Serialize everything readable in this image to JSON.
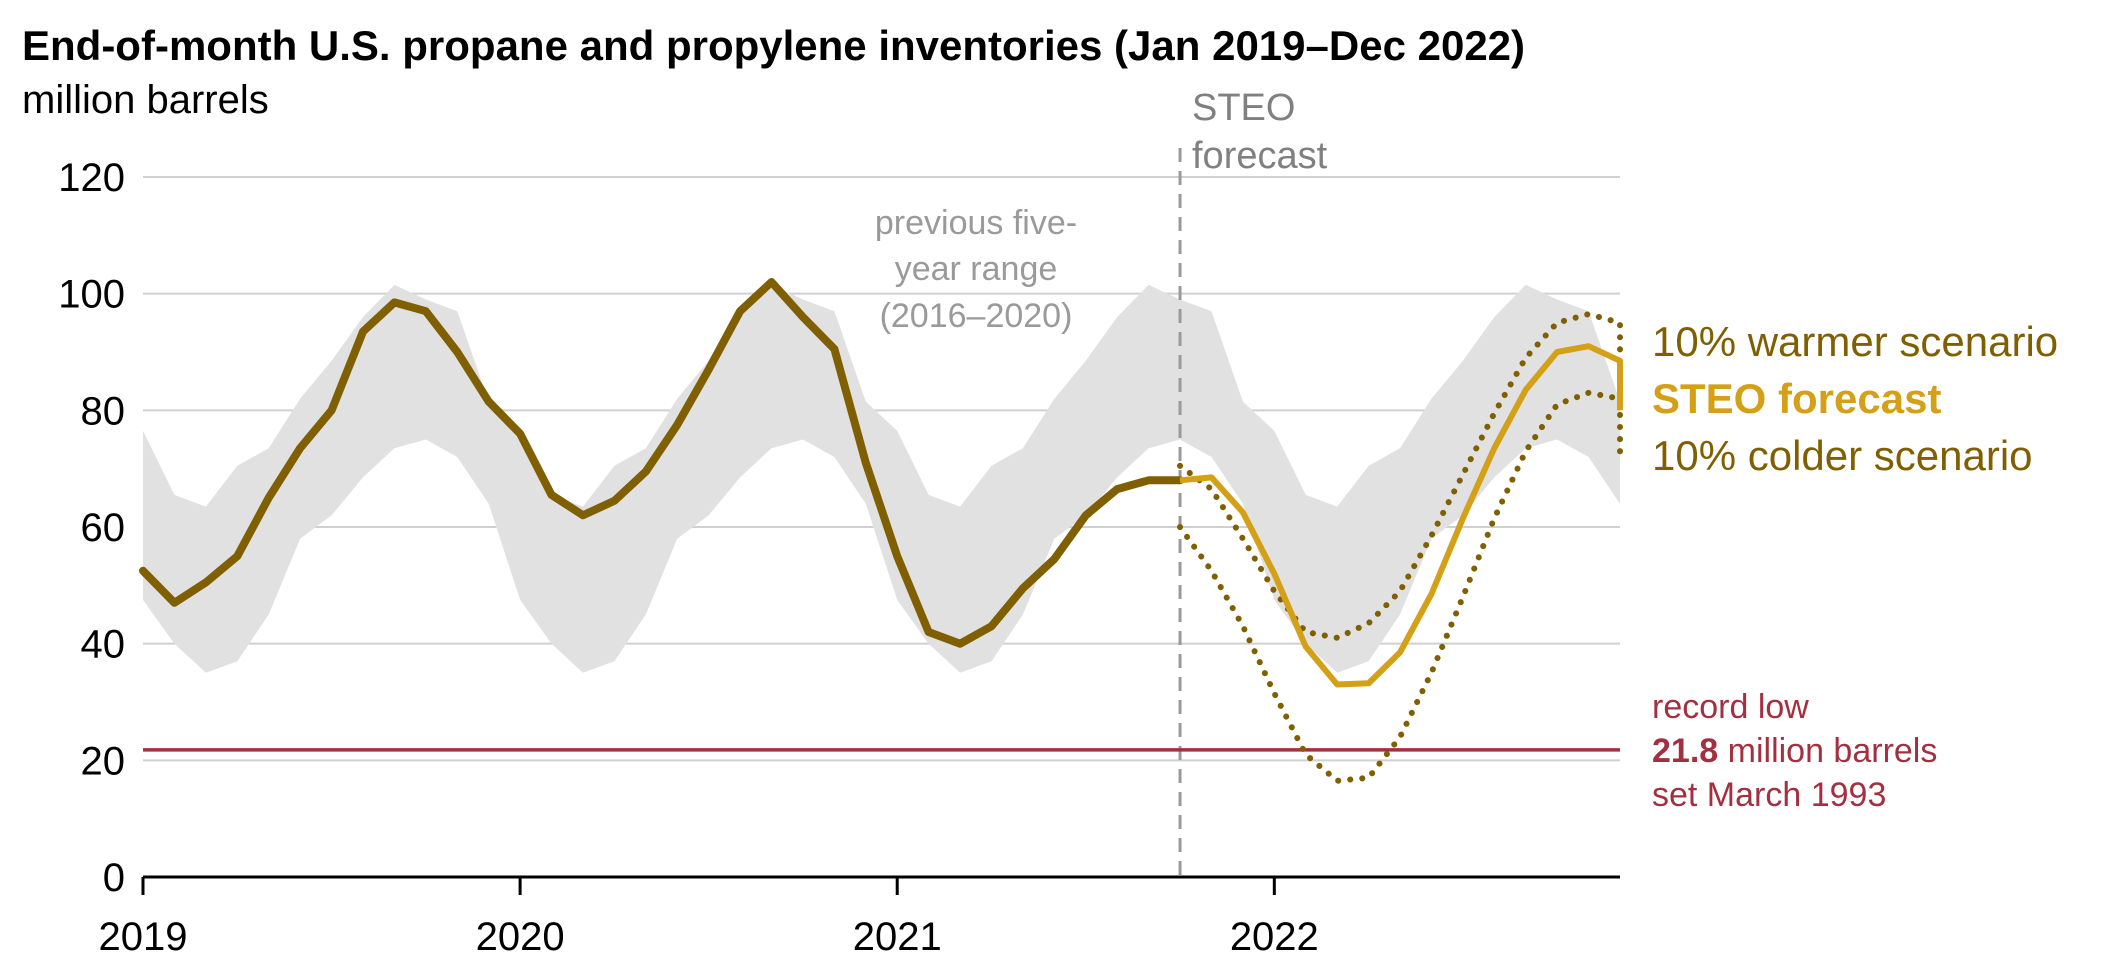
{
  "chart_data": {
    "type": "line",
    "title": "End-of-month U.S. propane and propylene inventories (Jan 2019–Dec 2022)",
    "ylabel": "million barrels",
    "ylim": [
      0,
      120
    ],
    "yticks": [
      "0",
      "20",
      "40",
      "60",
      "80",
      "100",
      "120"
    ],
    "xlim": [
      "2019-01",
      "2022-12"
    ],
    "xticks": [
      "2019",
      "2020",
      "2021",
      "2022"
    ],
    "grid": true,
    "colors": {
      "history": "#7f5f00",
      "forecast": "#d4a017",
      "scenario": "#7f5f00",
      "range": "#e1e1e1",
      "record": "#a33040",
      "forecast_marker": "#9a9a9a"
    },
    "history": {
      "x": [
        "2019-01",
        "2019-02",
        "2019-03",
        "2019-04",
        "2019-05",
        "2019-06",
        "2019-07",
        "2019-08",
        "2019-09",
        "2019-10",
        "2019-11",
        "2019-12",
        "2020-01",
        "2020-02",
        "2020-03",
        "2020-04",
        "2020-05",
        "2020-06",
        "2020-07",
        "2020-08",
        "2020-09",
        "2020-10",
        "2020-11",
        "2020-12",
        "2021-01",
        "2021-02",
        "2021-03",
        "2021-04",
        "2021-05",
        "2021-06",
        "2021-07",
        "2021-08",
        "2021-09",
        "2021-10"
      ],
      "values": [
        52.5,
        47.0,
        50.5,
        55.0,
        65.0,
        73.5,
        80.0,
        93.5,
        98.5,
        97.0,
        90.0,
        81.5,
        76.0,
        65.5,
        62.0,
        64.5,
        69.5,
        77.5,
        87.0,
        97.0,
        102.0,
        96.0,
        90.5,
        71.0,
        55.0,
        42.0,
        40.0,
        43.0,
        49.5,
        54.5,
        62.0,
        66.5,
        68.0,
        68.0
      ]
    },
    "forecast": {
      "name": "STEO forecast",
      "x": [
        "2021-10",
        "2021-11",
        "2021-12",
        "2022-01",
        "2022-02",
        "2022-03",
        "2022-04",
        "2022-05",
        "2022-06",
        "2022-07",
        "2022-08",
        "2022-09",
        "2022-10",
        "2022-11",
        "2022-12"
      ],
      "values": [
        68.0,
        68.5,
        62.5,
        52.0,
        39.5,
        33.0,
        33.2,
        38.5,
        48.5,
        61.5,
        73.5,
        83.5,
        90.0,
        91.0,
        88.5
      ]
    },
    "forecast_end": {
      "x": "2023-01",
      "value": 80.0
    },
    "warmer": {
      "name": "10% warmer scenario",
      "x": [
        "2021-10",
        "2021-11",
        "2021-12",
        "2022-01",
        "2022-02",
        "2022-03",
        "2022-04",
        "2022-05",
        "2022-06",
        "2022-07",
        "2022-08",
        "2022-09",
        "2022-10",
        "2022-11",
        "2022-12"
      ],
      "values": [
        70.5,
        66.5,
        58.0,
        49.0,
        42.0,
        41.0,
        43.5,
        49.0,
        58.5,
        69.0,
        79.5,
        89.0,
        95.0,
        96.5,
        95.0
      ],
      "end_value": 86.0
    },
    "colder": {
      "name": "10% colder scenario",
      "x": [
        "2021-10",
        "2021-11",
        "2021-12",
        "2022-01",
        "2022-02",
        "2022-03",
        "2022-04",
        "2022-05",
        "2022-06",
        "2022-07",
        "2022-08",
        "2022-09",
        "2022-10",
        "2022-11",
        "2022-12"
      ],
      "values": [
        60.0,
        52.5,
        43.0,
        31.5,
        21.0,
        16.5,
        17.0,
        24.0,
        35.0,
        48.0,
        61.5,
        73.0,
        81.0,
        83.0,
        82.0
      ],
      "end_value": 73.0
    },
    "five_year_range": {
      "x": [
        "2019-01",
        "2019-02",
        "2019-03",
        "2019-04",
        "2019-05",
        "2019-06",
        "2019-07",
        "2019-08",
        "2019-09",
        "2019-10",
        "2019-11",
        "2019-12"
      ],
      "high": [
        76.5,
        65.5,
        63.5,
        70.5,
        73.5,
        82.0,
        88.5,
        96.0,
        101.5,
        99.0,
        97.0,
        81.5
      ],
      "low": [
        47.5,
        40.0,
        35.0,
        37.0,
        45.0,
        58.0,
        62.0,
        68.5,
        73.5,
        75.0,
        72.0,
        64.0
      ],
      "end_high": 76.5,
      "end_low": 64.5
    },
    "record_low": {
      "value": 21.8
    },
    "forecast_start": "2021-10"
  },
  "labels": {
    "title": "End-of-month U.S. propane and propylene inventories (Jan 2019–Dec 2022)",
    "unit": "million barrels",
    "range_l1": "previous five-",
    "range_l2": "year range",
    "range_l3": "(2016–2020)",
    "steo_l1": "STEO",
    "steo_l2": "forecast",
    "warmer": "10% warmer scenario",
    "forecast": "STEO forecast",
    "colder": "10% colder scenario",
    "record_l1": "record low",
    "record_value": "21.8",
    "record_l2_rest": " million barrels",
    "record_l3": "set March 1993"
  }
}
